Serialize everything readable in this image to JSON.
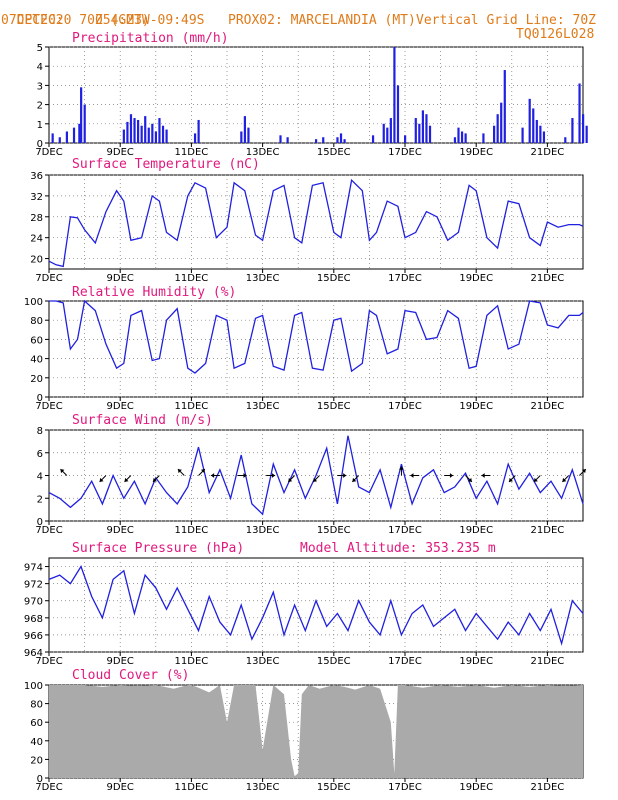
{
  "header": {
    "line1_left": "CPTEC:",
    "coords": "054:23W-09:49S",
    "location": "PROX02: MARCELANDIA (MT)",
    "date": "07DEC2020 70Z (GMT)",
    "grid_note": "Vertical Grid Line: 70Z",
    "code": "TQ0126L028"
  },
  "x_labels": [
    "7DEC",
    "9DEC",
    "11DEC",
    "13DEC",
    "15DEC",
    "17DEC",
    "19DEC",
    "21DEC"
  ],
  "chart_data": [
    {
      "type": "bar",
      "title": "Precipitation (mm/h)",
      "ylim": [
        0,
        5
      ],
      "yticks": [
        0,
        1,
        2,
        3,
        4,
        5
      ],
      "x_days": [
        7,
        22
      ],
      "color": "#2020e0",
      "x": [
        7.1,
        7.3,
        7.5,
        7.7,
        7.85,
        7.9,
        8.0,
        9.1,
        9.2,
        9.3,
        9.4,
        9.5,
        9.6,
        9.7,
        9.8,
        9.9,
        10.0,
        10.1,
        10.2,
        10.3,
        11.1,
        11.2,
        12.4,
        12.5,
        12.6,
        13.5,
        13.7,
        14.5,
        14.7,
        15.1,
        15.2,
        15.3,
        16.1,
        16.4,
        16.5,
        16.6,
        16.7,
        16.8,
        17.0,
        17.3,
        17.4,
        17.5,
        17.6,
        17.7,
        18.4,
        18.5,
        18.6,
        18.7,
        19.2,
        19.5,
        19.6,
        19.7,
        19.8,
        20.3,
        20.5,
        20.6,
        20.7,
        20.8,
        20.9,
        21.5,
        21.7,
        21.9,
        22.0,
        22.1
      ],
      "values": [
        0.5,
        0.3,
        0.6,
        0.8,
        1.0,
        2.9,
        2.0,
        0.7,
        1.1,
        1.5,
        1.3,
        1.2,
        0.9,
        1.4,
        0.8,
        1.0,
        0.6,
        1.3,
        0.9,
        0.7,
        0.5,
        1.2,
        0.6,
        1.4,
        0.8,
        0.4,
        0.3,
        0.2,
        0.3,
        0.3,
        0.5,
        0.2,
        0.4,
        1.0,
        0.8,
        1.3,
        5.0,
        3.0,
        0.4,
        1.3,
        1.0,
        1.7,
        1.5,
        0.9,
        0.3,
        0.8,
        0.6,
        0.5,
        0.5,
        0.9,
        1.5,
        2.1,
        3.8,
        0.8,
        2.3,
        1.8,
        1.2,
        0.9,
        0.6,
        0.3,
        1.3,
        3.1,
        1.5,
        0.9
      ]
    },
    {
      "type": "line",
      "title": "Surface Temperature (nC)",
      "ylim": [
        18,
        36
      ],
      "yticks": [
        20,
        24,
        28,
        32,
        36
      ],
      "color": "#2020e0",
      "x_days": [
        7,
        22
      ],
      "x": [
        7.0,
        7.2,
        7.4,
        7.6,
        7.8,
        8.0,
        8.3,
        8.6,
        8.9,
        9.1,
        9.3,
        9.6,
        9.9,
        10.1,
        10.3,
        10.6,
        10.9,
        11.1,
        11.4,
        11.7,
        12.0,
        12.2,
        12.5,
        12.8,
        13.0,
        13.3,
        13.6,
        13.9,
        14.1,
        14.4,
        14.7,
        15.0,
        15.2,
        15.5,
        15.8,
        16.0,
        16.2,
        16.5,
        16.8,
        17.0,
        17.3,
        17.6,
        17.9,
        18.2,
        18.5,
        18.8,
        19.0,
        19.3,
        19.6,
        19.9,
        20.2,
        20.5,
        20.8,
        21.0,
        21.3,
        21.6,
        21.9,
        22.0
      ],
      "values": [
        19.5,
        18.8,
        18.5,
        28.0,
        27.8,
        25.5,
        23.0,
        29.0,
        33.0,
        31.0,
        23.5,
        24.0,
        32.0,
        31.0,
        25.0,
        23.5,
        32.0,
        34.5,
        33.5,
        24.0,
        26.0,
        34.5,
        33.0,
        24.5,
        23.5,
        33.0,
        34.0,
        24.0,
        23.0,
        34.0,
        34.5,
        25.0,
        24.0,
        35.0,
        33.0,
        23.5,
        25.0,
        31.0,
        30.0,
        24.0,
        25.0,
        29.0,
        28.0,
        23.5,
        25.0,
        34.0,
        33.0,
        24.0,
        22.0,
        31.0,
        30.5,
        24.0,
        22.5,
        27.0,
        26.0,
        26.5,
        26.5,
        26.2
      ]
    },
    {
      "type": "line",
      "title": "Relative Humidity (%)",
      "ylim": [
        0,
        100
      ],
      "yticks": [
        0,
        20,
        40,
        60,
        80,
        100
      ],
      "color": "#2020e0",
      "x_days": [
        7,
        22
      ],
      "x": [
        7.0,
        7.2,
        7.4,
        7.6,
        7.8,
        8.0,
        8.3,
        8.6,
        8.9,
        9.1,
        9.3,
        9.6,
        9.9,
        10.1,
        10.3,
        10.6,
        10.9,
        11.1,
        11.4,
        11.7,
        12.0,
        12.2,
        12.5,
        12.8,
        13.0,
        13.3,
        13.6,
        13.9,
        14.1,
        14.4,
        14.7,
        15.0,
        15.2,
        15.5,
        15.8,
        16.0,
        16.2,
        16.5,
        16.8,
        17.0,
        17.3,
        17.6,
        17.9,
        18.2,
        18.5,
        18.8,
        19.0,
        19.3,
        19.6,
        19.9,
        20.2,
        20.5,
        20.8,
        21.0,
        21.3,
        21.6,
        21.9,
        22.0
      ],
      "values": [
        100,
        100,
        98,
        50,
        60,
        100,
        90,
        55,
        30,
        35,
        85,
        90,
        38,
        40,
        80,
        92,
        30,
        25,
        35,
        85,
        80,
        30,
        35,
        82,
        85,
        32,
        28,
        85,
        88,
        30,
        28,
        80,
        82,
        27,
        35,
        90,
        85,
        45,
        50,
        90,
        88,
        60,
        62,
        90,
        82,
        30,
        32,
        85,
        95,
        50,
        55,
        100,
        98,
        75,
        72,
        85,
        85,
        88
      ]
    },
    {
      "type": "line",
      "title": "Surface Wind (m/s)",
      "ylim": [
        0,
        8
      ],
      "yticks": [
        0,
        2,
        4,
        6,
        8
      ],
      "color": "#2020e0",
      "x_days": [
        7,
        22
      ],
      "x": [
        7.0,
        7.3,
        7.6,
        7.9,
        8.2,
        8.5,
        8.8,
        9.1,
        9.4,
        9.7,
        10.0,
        10.3,
        10.6,
        10.9,
        11.2,
        11.5,
        11.8,
        12.1,
        12.4,
        12.7,
        13.0,
        13.3,
        13.6,
        13.9,
        14.2,
        14.5,
        14.8,
        15.1,
        15.4,
        15.7,
        16.0,
        16.3,
        16.6,
        16.9,
        17.2,
        17.5,
        17.8,
        18.1,
        18.4,
        18.7,
        19.0,
        19.3,
        19.6,
        19.9,
        20.2,
        20.5,
        20.8,
        21.1,
        21.4,
        21.7,
        22.0
      ],
      "values": [
        2.5,
        2.0,
        1.2,
        2.0,
        3.5,
        1.5,
        4.0,
        2.0,
        3.5,
        1.5,
        3.8,
        2.5,
        1.5,
        3.0,
        6.5,
        2.5,
        4.5,
        2.0,
        5.8,
        1.5,
        0.6,
        5.0,
        2.5,
        4.5,
        2.0,
        4.0,
        6.4,
        1.5,
        7.5,
        3.0,
        2.5,
        4.5,
        1.2,
        5.0,
        1.5,
        3.8,
        4.5,
        2.5,
        3.0,
        4.2,
        2.0,
        3.5,
        1.5,
        5.0,
        2.8,
        4.2,
        2.5,
        3.5,
        2.0,
        4.5,
        1.5
      ],
      "vectors": [
        {
          "x": 7.5,
          "u": -1,
          "v": 1
        },
        {
          "x": 8.6,
          "u": -1,
          "v": -1
        },
        {
          "x": 9.3,
          "u": -1,
          "v": -1
        },
        {
          "x": 10.1,
          "u": -1,
          "v": -1
        },
        {
          "x": 10.8,
          "u": -1,
          "v": 1
        },
        {
          "x": 11.2,
          "u": 1,
          "v": 1
        },
        {
          "x": 11.8,
          "u": -1,
          "v": 0
        },
        {
          "x": 12.3,
          "u": 1,
          "v": 0
        },
        {
          "x": 13.1,
          "u": 1,
          "v": 0
        },
        {
          "x": 13.9,
          "u": -1,
          "v": -1
        },
        {
          "x": 14.6,
          "u": -1,
          "v": -1
        },
        {
          "x": 15.1,
          "u": 1,
          "v": 0
        },
        {
          "x": 15.7,
          "u": -1,
          "v": -1
        },
        {
          "x": 16.9,
          "u": 0,
          "v": 1
        },
        {
          "x": 17.4,
          "u": -1,
          "v": 0
        },
        {
          "x": 18.1,
          "u": 1,
          "v": 0
        },
        {
          "x": 18.7,
          "u": 1,
          "v": -1
        },
        {
          "x": 19.4,
          "u": -1,
          "v": 0
        },
        {
          "x": 20.1,
          "u": -1,
          "v": -1
        },
        {
          "x": 20.8,
          "u": -1,
          "v": -1
        },
        {
          "x": 21.6,
          "u": -1,
          "v": -1
        },
        {
          "x": 21.9,
          "u": 1,
          "v": 1
        }
      ]
    },
    {
      "type": "line",
      "title": "Surface Pressure (hPa)",
      "subtitle": "Model Altitude: 353.235 m",
      "ylim": [
        964,
        975
      ],
      "yticks": [
        964,
        966,
        968,
        970,
        972,
        974
      ],
      "color": "#2020e0",
      "x_days": [
        7,
        22
      ],
      "x": [
        7.0,
        7.3,
        7.6,
        7.9,
        8.2,
        8.5,
        8.8,
        9.1,
        9.4,
        9.7,
        10.0,
        10.3,
        10.6,
        10.9,
        11.2,
        11.5,
        11.8,
        12.1,
        12.4,
        12.7,
        13.0,
        13.3,
        13.6,
        13.9,
        14.2,
        14.5,
        14.8,
        15.1,
        15.4,
        15.7,
        16.0,
        16.3,
        16.6,
        16.9,
        17.2,
        17.5,
        17.8,
        18.1,
        18.4,
        18.7,
        19.0,
        19.3,
        19.6,
        19.9,
        20.2,
        20.5,
        20.8,
        21.1,
        21.4,
        21.7,
        22.0
      ],
      "values": [
        972.5,
        973.0,
        972.0,
        974.0,
        970.5,
        968.0,
        972.5,
        973.5,
        968.5,
        973.0,
        971.5,
        969.0,
        971.5,
        969.0,
        966.5,
        970.5,
        967.5,
        966.0,
        969.5,
        965.5,
        968.0,
        971.0,
        966.0,
        969.5,
        966.5,
        970.0,
        967.0,
        968.5,
        966.5,
        970.0,
        967.5,
        966.0,
        970.0,
        966.0,
        968.5,
        969.5,
        967.0,
        968.0,
        969.0,
        966.5,
        968.5,
        967.0,
        965.5,
        967.5,
        966.0,
        968.5,
        966.5,
        969.0,
        965.0,
        970.0,
        968.5
      ]
    },
    {
      "type": "area",
      "title": "Cloud Cover (%)",
      "ylim": [
        0,
        100
      ],
      "yticks": [
        0,
        20,
        40,
        60,
        80,
        100
      ],
      "color": "#aaaaaa",
      "x_days": [
        7,
        22
      ],
      "x": [
        7.0,
        7.5,
        8.0,
        8.5,
        9.0,
        9.5,
        10.0,
        10.5,
        10.9,
        11.0,
        11.2,
        11.5,
        11.8,
        12.0,
        12.2,
        12.5,
        12.8,
        13.0,
        13.3,
        13.6,
        13.8,
        13.9,
        14.0,
        14.1,
        14.3,
        14.6,
        15.0,
        15.3,
        15.6,
        16.0,
        16.3,
        16.6,
        16.7,
        16.8,
        17.0,
        17.5,
        18.0,
        18.5,
        19.0,
        19.5,
        20.0,
        20.5,
        21.0,
        21.5,
        22.0
      ],
      "values": [
        100,
        100,
        100,
        98,
        100,
        99,
        100,
        96,
        100,
        100,
        97,
        92,
        100,
        60,
        100,
        100,
        100,
        30,
        100,
        90,
        20,
        2,
        5,
        90,
        100,
        96,
        100,
        98,
        95,
        100,
        96,
        60,
        5,
        100,
        100,
        97,
        100,
        98,
        100,
        97,
        100,
        98,
        100,
        99,
        100
      ]
    }
  ]
}
